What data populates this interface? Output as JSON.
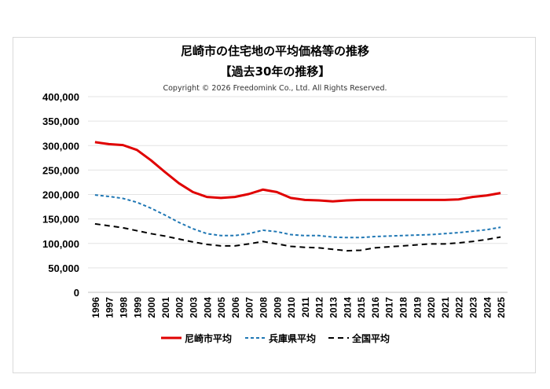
{
  "chart_data": {
    "type": "line",
    "title": "尼崎市の住宅地の平均価格等の推移",
    "subtitle": "【過去30年の推移】",
    "copyright": "Copyright © 2026 Freedomink Co., Ltd. All Rights Reserved.",
    "xlabel": "",
    "ylabel": "",
    "ylim": [
      0,
      400000
    ],
    "yticks": [
      "0",
      "50,000",
      "100,000",
      "150,000",
      "200,000",
      "250,000",
      "300,000",
      "350,000",
      "400,000"
    ],
    "grid": true,
    "legend_position": "bottom",
    "categories": [
      "1996",
      "1997",
      "1998",
      "1999",
      "2000",
      "2001",
      "2002",
      "2003",
      "2004",
      "2005",
      "2006",
      "2007",
      "2008",
      "2009",
      "2010",
      "2011",
      "2012",
      "2013",
      "2014",
      "2015",
      "2016",
      "2017",
      "2018",
      "2019",
      "2020",
      "2021",
      "2022",
      "2023",
      "2024",
      "2025"
    ],
    "series": [
      {
        "name": "尼崎市平均",
        "color": "#e00000",
        "style": "solid",
        "values": [
          307000,
          303000,
          301000,
          291000,
          270000,
          246000,
          223000,
          205000,
          195000,
          193000,
          195000,
          201000,
          210000,
          205000,
          193000,
          189000,
          188000,
          186000,
          188000,
          189000,
          189000,
          189000,
          189000,
          189000,
          189000,
          189000,
          190000,
          195000,
          198000,
          203000
        ]
      },
      {
        "name": "兵庫県平均",
        "color": "#1f77b4",
        "style": "dashed",
        "values": [
          199000,
          196000,
          192000,
          184000,
          172000,
          158000,
          143000,
          130000,
          120000,
          116000,
          116000,
          120000,
          127000,
          124000,
          118000,
          116000,
          116000,
          113000,
          112000,
          112000,
          114000,
          115000,
          116000,
          117000,
          118000,
          120000,
          122000,
          125000,
          128000,
          133000
        ]
      },
      {
        "name": "全国平均",
        "color": "#000000",
        "style": "dashed",
        "values": [
          140000,
          136000,
          132000,
          126000,
          120000,
          115000,
          109000,
          103000,
          98000,
          95000,
          95000,
          99000,
          104000,
          99000,
          94000,
          92000,
          91000,
          88000,
          85000,
          86000,
          91000,
          93000,
          95000,
          97000,
          99000,
          99000,
          101000,
          104000,
          108000,
          113000
        ]
      }
    ]
  }
}
